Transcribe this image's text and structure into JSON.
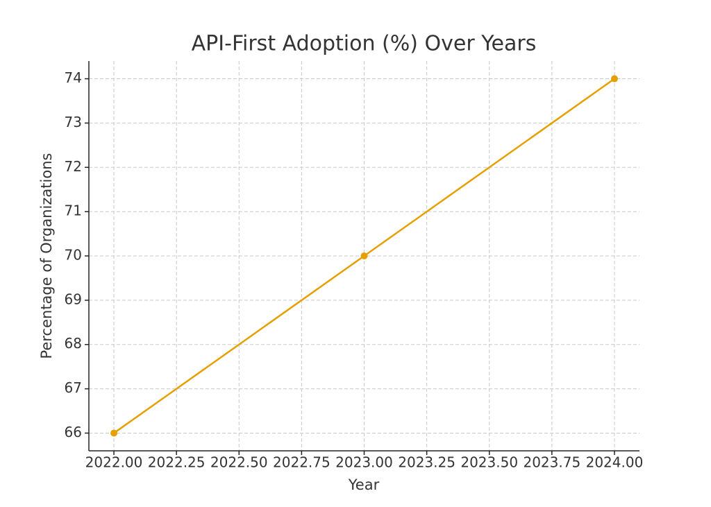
{
  "chart_data": {
    "type": "line",
    "title": "API-First Adoption (%) Over Years",
    "xlabel": "Year",
    "ylabel": "Percentage of Organizations",
    "x": [
      2022,
      2023,
      2024
    ],
    "series": [
      {
        "name": "API-First Adoption",
        "color": "#e69f00",
        "values": [
          66,
          70,
          74
        ]
      }
    ],
    "xlim": [
      2021.9,
      2024.1
    ],
    "xticks": [
      {
        "value": 2022,
        "label": "2022.00"
      },
      {
        "value": 2022.25,
        "label": "2022.25"
      },
      {
        "value": 2022.5,
        "label": "2022.50"
      },
      {
        "value": 2022.75,
        "label": "2022.75"
      },
      {
        "value": 2023,
        "label": "2023.00"
      },
      {
        "value": 2023.25,
        "label": "2023.25"
      },
      {
        "value": 2023.5,
        "label": "2023.50"
      },
      {
        "value": 2023.75,
        "label": "2023.75"
      },
      {
        "value": 2024,
        "label": "2024.00"
      }
    ],
    "ylim": [
      65.6,
      74.4
    ],
    "yticks": [
      66,
      67,
      68,
      69,
      70,
      71,
      72,
      73,
      74
    ],
    "grid": true
  }
}
